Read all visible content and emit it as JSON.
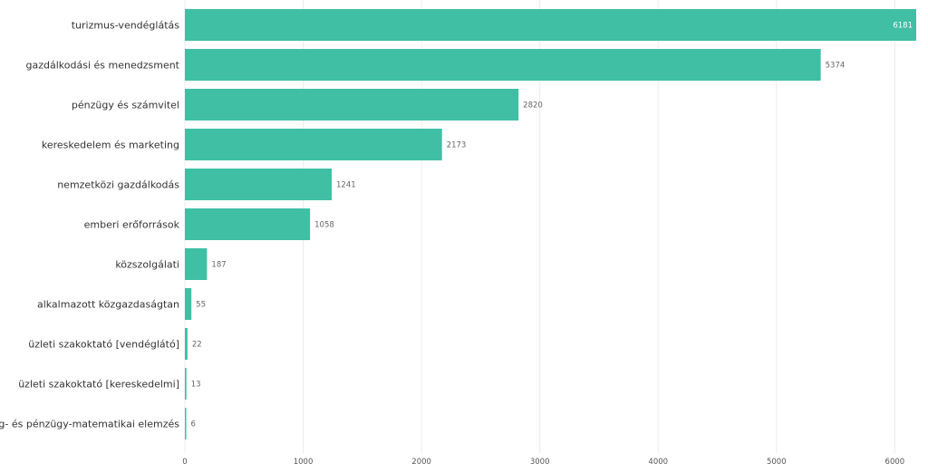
{
  "chart_data": {
    "type": "bar",
    "orientation": "horizontal",
    "title": "",
    "xlabel": "",
    "ylabel": "",
    "bar_color": "#40bfa4",
    "categories": [
      "turizmus-vendéglátás",
      "gazdálkodási és menedzsment",
      "pénzügy és számvitel",
      "kereskedelem és marketing",
      "nemzetközi gazdálkodás",
      "emberi erőforrások",
      "közszolgálati",
      "alkalmazott közgazdaságtan",
      "üzleti szakoktató [vendéglátó]",
      "üzleti szakoktató [kereskedelmi]",
      "gazdaság- és pénzügy-matematikai elemzés"
    ],
    "values": [
      6181,
      5374,
      2820,
      2173,
      1241,
      1058,
      187,
      55,
      22,
      13,
      6
    ],
    "xlim": [
      0,
      6181
    ],
    "xticks": [
      0,
      1000,
      2000,
      3000,
      4000,
      5000,
      6000
    ],
    "grid": true,
    "legend": "none"
  }
}
